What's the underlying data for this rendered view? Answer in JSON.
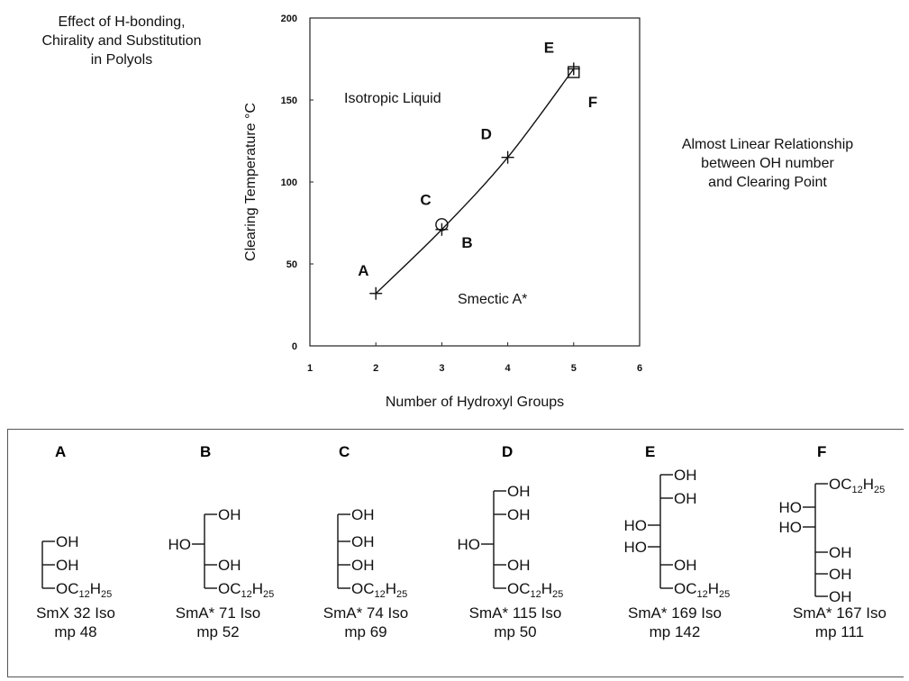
{
  "left_title": [
    "Effect of H-bonding,",
    "Chirality and Substitution",
    "in Polyols"
  ],
  "right_note": [
    "Almost Linear Relationship",
    "between OH number",
    "and Clearing Point"
  ],
  "chart_data": {
    "type": "line",
    "x": [
      2,
      3,
      4,
      5
    ],
    "series": [
      {
        "values": [
          32,
          71,
          115,
          169
        ]
      }
    ],
    "points": [
      {
        "label": "A",
        "x": 2,
        "y": 32,
        "marker": "plus"
      },
      {
        "label": "B",
        "x": 3,
        "y": 71,
        "marker": "plus"
      },
      {
        "label": "C",
        "x": 3,
        "y": 74,
        "marker": "circle"
      },
      {
        "label": "D",
        "x": 4,
        "y": 115,
        "marker": "plus"
      },
      {
        "label": "E",
        "x": 5,
        "y": 169,
        "marker": "plus"
      },
      {
        "label": "F",
        "x": 5,
        "y": 167,
        "marker": "square"
      }
    ],
    "xlabel": "Number of Hydroxyl Groups",
    "ylabel": "Clearing Temperature °C",
    "xlim": [
      1,
      6
    ],
    "ylim": [
      0,
      200
    ],
    "xticks": [
      "1",
      "2",
      "3",
      "4",
      "5",
      "6"
    ],
    "yticks": [
      "0",
      "50",
      "100",
      "150",
      "200"
    ],
    "annotations": [
      "Isotropic Liquid",
      "Smectic A*"
    ],
    "grid": false
  },
  "molecules": [
    {
      "letter": "A",
      "phase": "SmX 32 Iso",
      "mp": "mp 48"
    },
    {
      "letter": "B",
      "phase": "SmA* 71 Iso",
      "mp": "mp 52"
    },
    {
      "letter": "C",
      "phase": "SmA* 74 Iso",
      "mp": "mp 69"
    },
    {
      "letter": "D",
      "phase": "SmA* 115 Iso",
      "mp": "mp 50"
    },
    {
      "letter": "E",
      "phase": "SmA* 169 Iso",
      "mp": "mp 142"
    },
    {
      "letter": "F",
      "phase": "SmA* 167 Iso",
      "mp": "mp 111"
    }
  ],
  "groups": {
    "oh": "OH",
    "ho": "HO",
    "o": "O",
    "c": "C",
    "h": "H",
    "c_sub": "12",
    "h_sub": "25"
  }
}
